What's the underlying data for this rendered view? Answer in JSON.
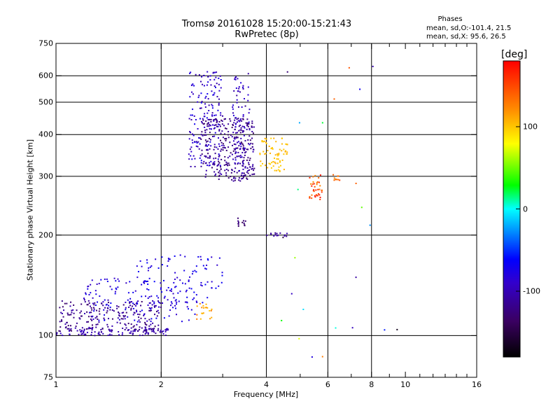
{
  "chart_data": {
    "type": "scatter",
    "title": "Tromsø 20161028 15:20:00-15:21:43",
    "subtitle": "RwPretec (8p)",
    "xlabel": "Frequency [MHz]",
    "ylabel": "Stationary phase Virtual Height [km]",
    "x_scale": "log",
    "y_scale": "log",
    "xlim": [
      1,
      16
    ],
    "ylim": [
      75,
      750
    ],
    "x_major_ticks": [
      1,
      2,
      4,
      6,
      8,
      10,
      16
    ],
    "x_tick_labels": [
      "1",
      "2",
      "4",
      "6",
      "8",
      "10",
      "16"
    ],
    "x_minor_ticks": [
      3,
      5,
      7,
      9,
      11,
      12,
      13,
      14,
      15
    ],
    "y_major_ticks": [
      75,
      100,
      200,
      300,
      400,
      500,
      600,
      750
    ],
    "y_tick_labels": [
      "75",
      "100",
      "200",
      "300",
      "400",
      "500",
      "600",
      "750"
    ],
    "grid_x": [
      2,
      4,
      6,
      8
    ],
    "grid_y": [
      100,
      200,
      300,
      400,
      500,
      600
    ],
    "grid": true,
    "legend": {
      "title": "Phases",
      "line1": "mean, sd,O:-101.4, 21.5",
      "line2": "mean, sd,X:  95.6, 26.5",
      "placement": "top-right"
    },
    "colorbar": {
      "label": "[deg]",
      "range": [
        -180,
        180
      ],
      "ticks": [
        -100,
        0,
        100
      ],
      "tick_labels": [
        "-100",
        "0",
        "100"
      ]
    },
    "clusters": [
      {
        "f": [
          1.0,
          2.1
        ],
        "h": [
          100,
          106
        ],
        "phase": [
          -115,
          -90
        ],
        "n": 120
      },
      {
        "f": [
          1.02,
          2.0
        ],
        "h": [
          103,
          128
        ],
        "phase": [
          -135,
          -100
        ],
        "n": 200
      },
      {
        "f": [
          1.2,
          2.5
        ],
        "h": [
          110,
          150
        ],
        "phase": [
          -95,
          -65
        ],
        "n": 140
      },
      {
        "f": [
          1.7,
          3.0
        ],
        "h": [
          125,
          175
        ],
        "phase": [
          -90,
          -60
        ],
        "n": 90
      },
      {
        "f": [
          2.5,
          2.8
        ],
        "h": [
          112,
          125
        ],
        "phase": [
          100,
          130
        ],
        "n": 20
      },
      {
        "f": [
          2.4,
          3.0
        ],
        "h": [
          320,
          620
        ],
        "phase": [
          -110,
          -70
        ],
        "n": 170
      },
      {
        "f": [
          2.6,
          3.7
        ],
        "h": [
          290,
          450
        ],
        "phase": [
          -135,
          -100
        ],
        "n": 300
      },
      {
        "f": [
          3.2,
          3.6
        ],
        "h": [
          300,
          610
        ],
        "phase": [
          -115,
          -80
        ],
        "n": 90
      },
      {
        "f": [
          3.3,
          3.5
        ],
        "h": [
          210,
          225
        ],
        "phase": [
          -140,
          -120
        ],
        "n": 12
      },
      {
        "f": [
          3.8,
          4.6
        ],
        "h": [
          310,
          390
        ],
        "phase": [
          95,
          110
        ],
        "n": 70
      },
      {
        "f": [
          4.0,
          4.6
        ],
        "h": [
          198,
          203
        ],
        "phase": [
          -120,
          -100
        ],
        "n": 14
      },
      {
        "f": [
          5.3,
          5.8
        ],
        "h": [
          255,
          305
        ],
        "phase": [
          120,
          175
        ],
        "n": 40
      },
      {
        "f": [
          6.2,
          6.5
        ],
        "h": [
          290,
          305
        ],
        "phase": [
          120,
          160
        ],
        "n": 10
      },
      {
        "f": [
          4.2,
          9.5
        ],
        "h": [
          85,
          650
        ],
        "phase": [
          -170,
          170
        ],
        "n": 24
      }
    ]
  }
}
